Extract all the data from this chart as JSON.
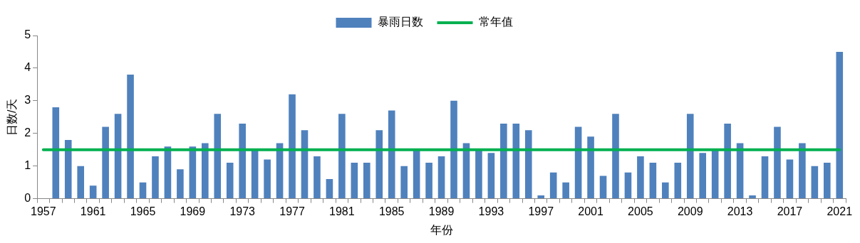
{
  "chart_data": {
    "type": "bar",
    "xlabel": "年份",
    "ylabel": "日数/天",
    "categories": [
      "1957",
      null,
      null,
      null,
      "1961",
      null,
      null,
      null,
      "1965",
      null,
      null,
      null,
      "1969",
      null,
      null,
      null,
      "1973",
      null,
      null,
      null,
      "1977",
      null,
      null,
      null,
      "1981",
      null,
      null,
      null,
      "1985",
      null,
      null,
      null,
      "1989",
      null,
      null,
      null,
      "1993",
      null,
      null,
      null,
      "1997",
      null,
      null,
      null,
      "2001",
      null,
      null,
      null,
      "2005",
      null,
      null,
      null,
      "2009",
      null,
      null,
      null,
      "2013",
      null,
      null,
      null,
      "2017",
      null,
      null,
      null,
      "2021"
    ],
    "series": [
      {
        "name": "暴雨日数",
        "color": "#4f81bd",
        "values": [
          null,
          2.8,
          1.8,
          1.0,
          0.4,
          2.2,
          2.6,
          3.8,
          0.5,
          1.3,
          1.6,
          0.9,
          1.6,
          1.7,
          2.6,
          1.1,
          2.3,
          1.5,
          1.2,
          1.7,
          3.2,
          2.1,
          1.3,
          0.6,
          2.6,
          1.1,
          1.1,
          2.1,
          2.7,
          1.0,
          1.5,
          1.1,
          1.3,
          3.0,
          1.7,
          1.5,
          1.4,
          2.3,
          2.3,
          2.1,
          0.1,
          0.8,
          0.5,
          2.2,
          1.9,
          0.7,
          2.6,
          0.8,
          1.3,
          1.1,
          0.5,
          1.1,
          2.6,
          1.4,
          1.5,
          2.3,
          1.7,
          0.1,
          1.3,
          2.2,
          1.2,
          1.7,
          1.0,
          1.1,
          4.5
        ]
      },
      {
        "name": "常年值",
        "type": "line",
        "color": "#00b050",
        "values": [
          1.5,
          1.5,
          1.5,
          1.5,
          1.5,
          1.5,
          1.5,
          1.5,
          1.5,
          1.5,
          1.5,
          1.5,
          1.5,
          1.5,
          1.5,
          1.5,
          1.5,
          1.5,
          1.5,
          1.5,
          1.5,
          1.5,
          1.5,
          1.5,
          1.5,
          1.5,
          1.5,
          1.5,
          1.5,
          1.5,
          1.5,
          1.5,
          1.5,
          1.5,
          1.5,
          1.5,
          1.5,
          1.5,
          1.5,
          1.5,
          1.5,
          1.5,
          1.5,
          1.5,
          1.5,
          1.5,
          1.5,
          1.5,
          1.5,
          1.5,
          1.5,
          1.5,
          1.5,
          1.5,
          1.5,
          1.5,
          1.5,
          1.5,
          1.5,
          1.5,
          1.5,
          1.5,
          1.5,
          1.5,
          1.5
        ]
      }
    ],
    "ylim": [
      0,
      5
    ],
    "yticks": [
      0,
      1,
      2,
      3,
      4,
      5
    ],
    "grid": false,
    "legend": "top",
    "marker": "none",
    "line_style": "solid"
  }
}
